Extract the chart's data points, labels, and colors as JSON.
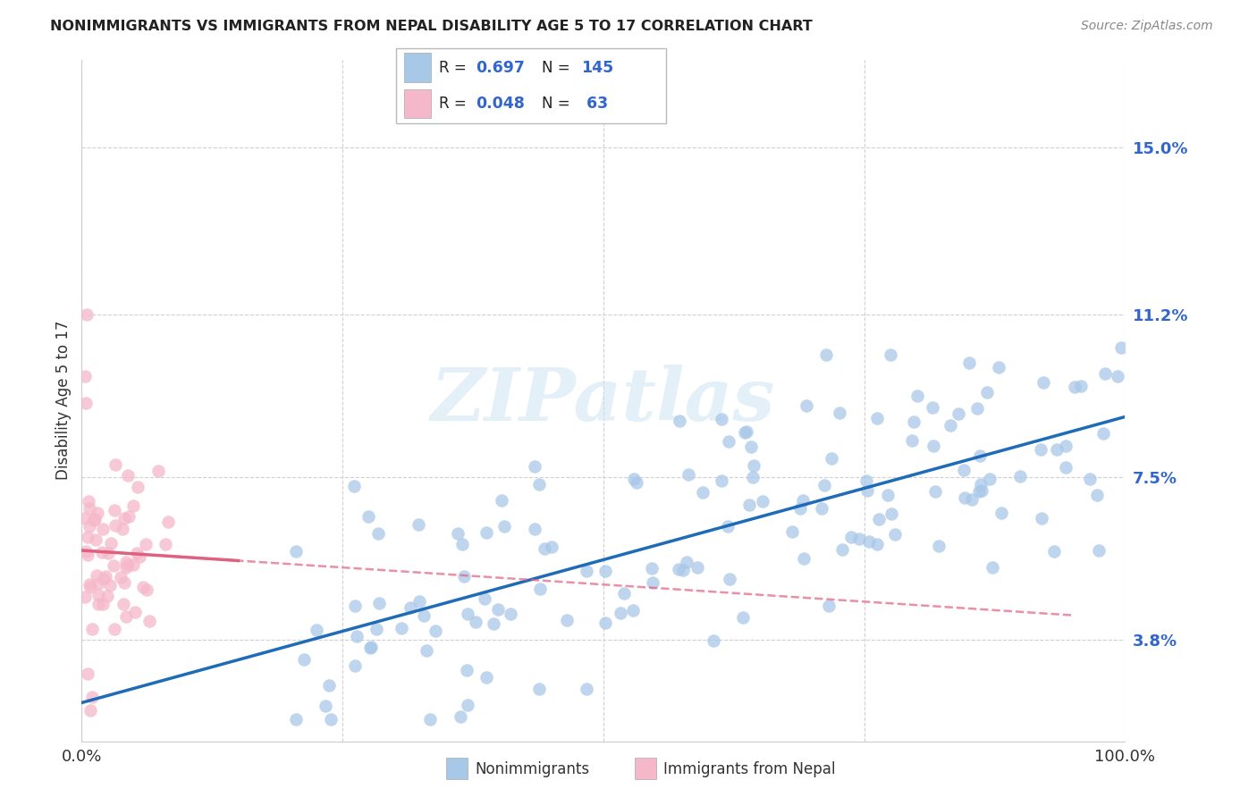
{
  "title": "NONIMMIGRANTS VS IMMIGRANTS FROM NEPAL DISABILITY AGE 5 TO 17 CORRELATION CHART",
  "source": "Source: ZipAtlas.com",
  "ylabel": "Disability Age 5 to 17",
  "ytick_vals": [
    3.8,
    7.5,
    11.2,
    15.0
  ],
  "ytick_labels": [
    "3.8%",
    "7.5%",
    "11.2%",
    "15.0%"
  ],
  "xlim": [
    0,
    100
  ],
  "ylim": [
    1.5,
    17.0
  ],
  "nonimm_R": "0.697",
  "nonimm_N": "145",
  "imm_R": "0.048",
  "imm_N": " 63",
  "nonimm_scatter_color": "#a8c8e8",
  "nonimm_line_color": "#1e6bb8",
  "imm_scatter_color": "#f5b8ca",
  "imm_line_color": "#e06080",
  "grid_color": "#d0d0d0",
  "watermark": "ZIPatlas",
  "watermark_color": "#ddeef8",
  "title_color": "#222222",
  "source_color": "#888888",
  "legend_label_nonimm": "Nonimmigrants",
  "legend_label_imm": "Immigrants from Nepal",
  "blue_text_color": "#3366cc",
  "label_color": "#3366cc",
  "xtick_left": "0.0%",
  "xtick_right": "100.0%"
}
